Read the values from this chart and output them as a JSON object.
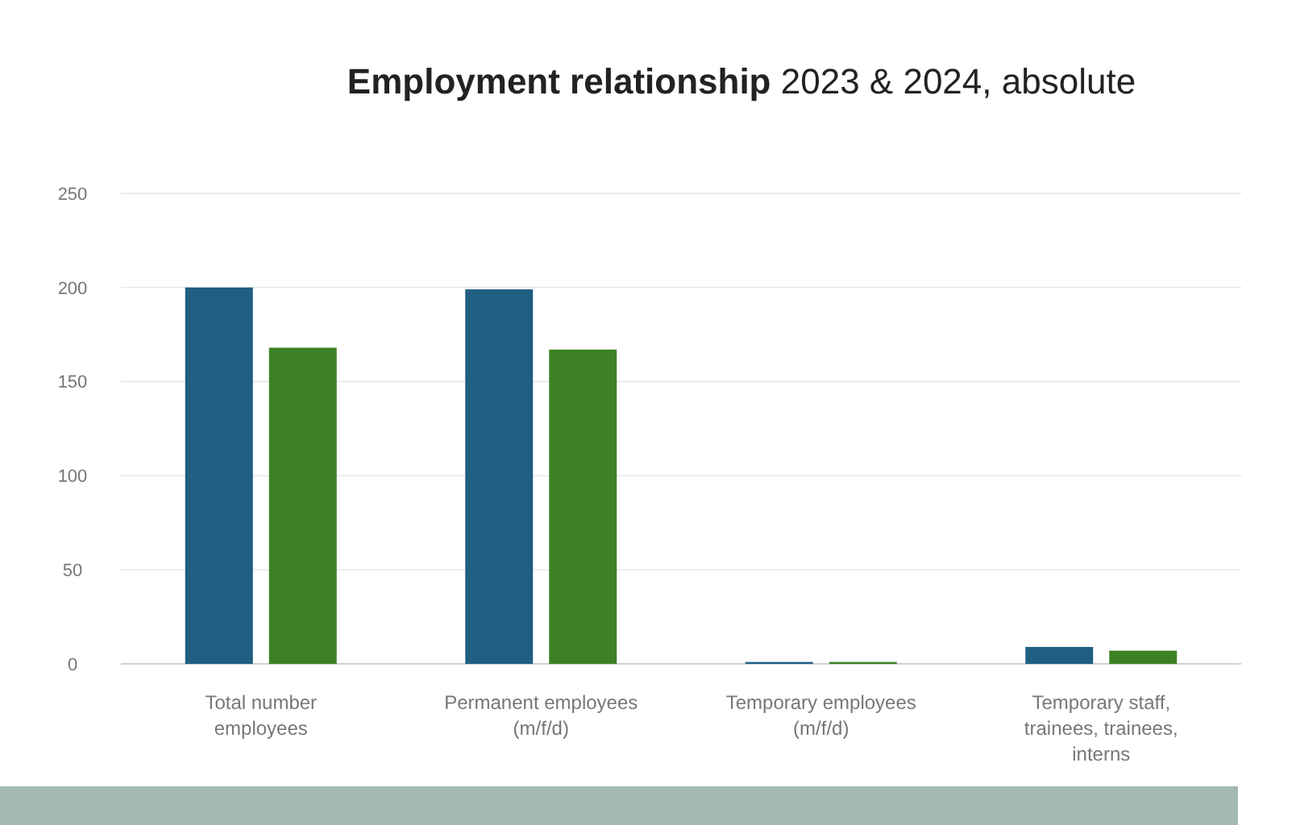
{
  "chart_data": {
    "type": "bar",
    "title": "Employment relationship",
    "subtitle": "2023 & 2024, absolute",
    "categories": [
      "Total number employees",
      "Permanent employees (m/f/d)",
      "Temporary employees (m/f/d)",
      "Temporary staff, trainees, trainees, interns"
    ],
    "series": [
      {
        "color": "#1f5f82",
        "values": [
          200,
          199,
          1,
          9
        ]
      },
      {
        "color": "#3c8224",
        "values": [
          168,
          167,
          1,
          7
        ]
      }
    ],
    "ylim": [
      0,
      250
    ],
    "yticks": [
      0,
      50,
      100,
      150,
      200,
      250
    ],
    "grid": "y"
  }
}
